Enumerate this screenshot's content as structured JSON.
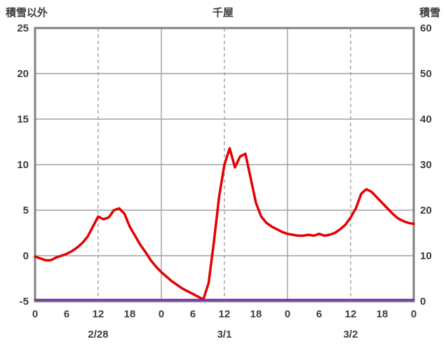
{
  "header": {
    "left_axis_title": "積雪以外",
    "chart_title": "千屋",
    "right_axis_title": "積雪"
  },
  "colors": {
    "text": "#3d3d3d",
    "grid": "#a0a0a0",
    "border": "#808080",
    "red_series": "#e60000",
    "purple_series": "#7030a0",
    "background": "#ffffff"
  },
  "chart_data": {
    "type": "line",
    "title": "千屋",
    "x_hours_total": 72,
    "x_tick_interval": 6,
    "x_tick_labels": [
      "0",
      "6",
      "12",
      "18",
      "0",
      "6",
      "12",
      "18",
      "0",
      "6",
      "12",
      "18",
      "0"
    ],
    "day_labels": [
      {
        "label": "2/28",
        "hour": 12
      },
      {
        "label": "3/1",
        "hour": 36
      },
      {
        "label": "3/2",
        "hour": 60
      }
    ],
    "left_axis": {
      "label": "積雪以外",
      "min": -5,
      "max": 25,
      "tick_step": 5,
      "ticks": [
        25,
        20,
        15,
        10,
        5,
        0,
        -5
      ]
    },
    "right_axis": {
      "label": "積雪",
      "min": 0,
      "max": 60,
      "tick_step": 10,
      "ticks": [
        60,
        50,
        40,
        30,
        20,
        10,
        0
      ]
    },
    "gridlines": {
      "horizontal_left_values": [
        0,
        5,
        10,
        15,
        20
      ],
      "vertical_solid_hours": [
        24,
        48
      ],
      "vertical_dashed_hours": [
        12,
        36,
        60
      ]
    },
    "series": [
      {
        "name": "積雪以外",
        "axis": "left",
        "color": "#e60000",
        "width": 3.5,
        "x_start_hour": 0,
        "x_step": 1,
        "values": [
          -0.1,
          -0.3,
          -0.5,
          -0.5,
          -0.2,
          0.0,
          0.2,
          0.5,
          0.9,
          1.4,
          2.1,
          3.2,
          4.3,
          4.0,
          4.2,
          5.0,
          5.2,
          4.6,
          3.2,
          2.2,
          1.2,
          0.4,
          -0.5,
          -1.2,
          -1.8,
          -2.3,
          -2.8,
          -3.2,
          -3.6,
          -3.9,
          -4.2,
          -4.5,
          -4.8,
          -3.0,
          1.5,
          6.5,
          10.0,
          11.8,
          9.7,
          10.9,
          11.2,
          8.5,
          5.8,
          4.3,
          3.6,
          3.2,
          2.9,
          2.6,
          2.4,
          2.3,
          2.2,
          2.2,
          2.3,
          2.2,
          2.4,
          2.2,
          2.3,
          2.5,
          2.9,
          3.4,
          4.2,
          5.2,
          6.8,
          7.3,
          7.0,
          6.4,
          5.8,
          5.2,
          4.6,
          4.1,
          3.8,
          3.6,
          3.5
        ]
      },
      {
        "name": "積雪",
        "axis": "right",
        "color": "#7030a0",
        "width": 3,
        "x_start_hour": 0,
        "x_step": 72,
        "values": [
          0,
          0
        ]
      }
    ]
  }
}
